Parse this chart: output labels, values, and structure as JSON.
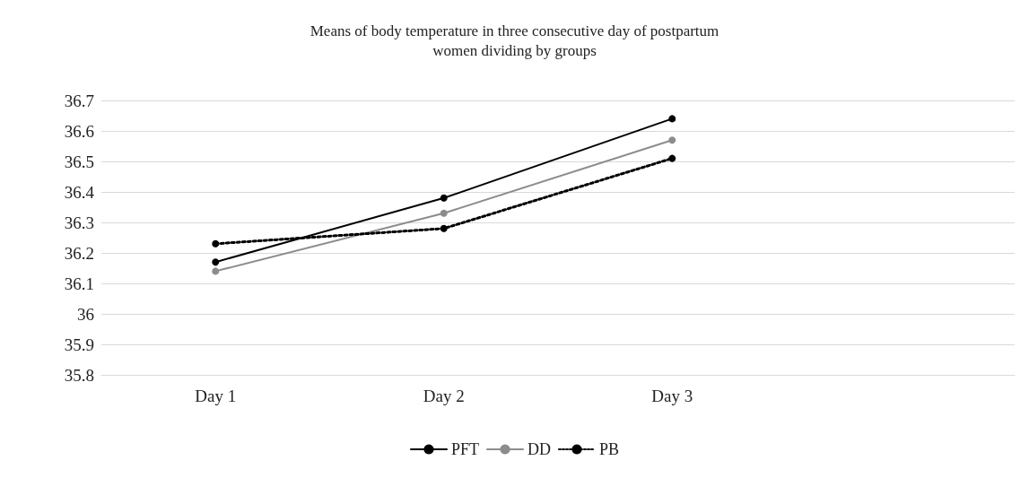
{
  "chart_data": {
    "type": "line",
    "title": "Means of body temperature in three consecutive day of postpartum\nwomen dividing by groups",
    "categories": [
      "Day 1",
      "Day 2",
      "Day 3",
      null
    ],
    "series": [
      {
        "name": "PFT",
        "color": "#000000",
        "values": [
          36.17,
          36.38,
          36.64,
          null
        ],
        "line_style": "solid"
      },
      {
        "name": "DD",
        "color": "#8c8c8c",
        "values": [
          36.14,
          36.33,
          36.57,
          null
        ],
        "line_style": "solid"
      },
      {
        "name": "PB",
        "color": "#000000",
        "values": [
          36.23,
          36.28,
          36.51,
          null
        ],
        "line_style": "dotted"
      }
    ],
    "ylim": [
      35.8,
      36.7
    ],
    "yticks": [
      35.8,
      35.9,
      36,
      36.1,
      36.2,
      36.3,
      36.4,
      36.5,
      36.6,
      36.7
    ],
    "grid": "y",
    "legend": "bottom",
    "marker": "circle"
  }
}
